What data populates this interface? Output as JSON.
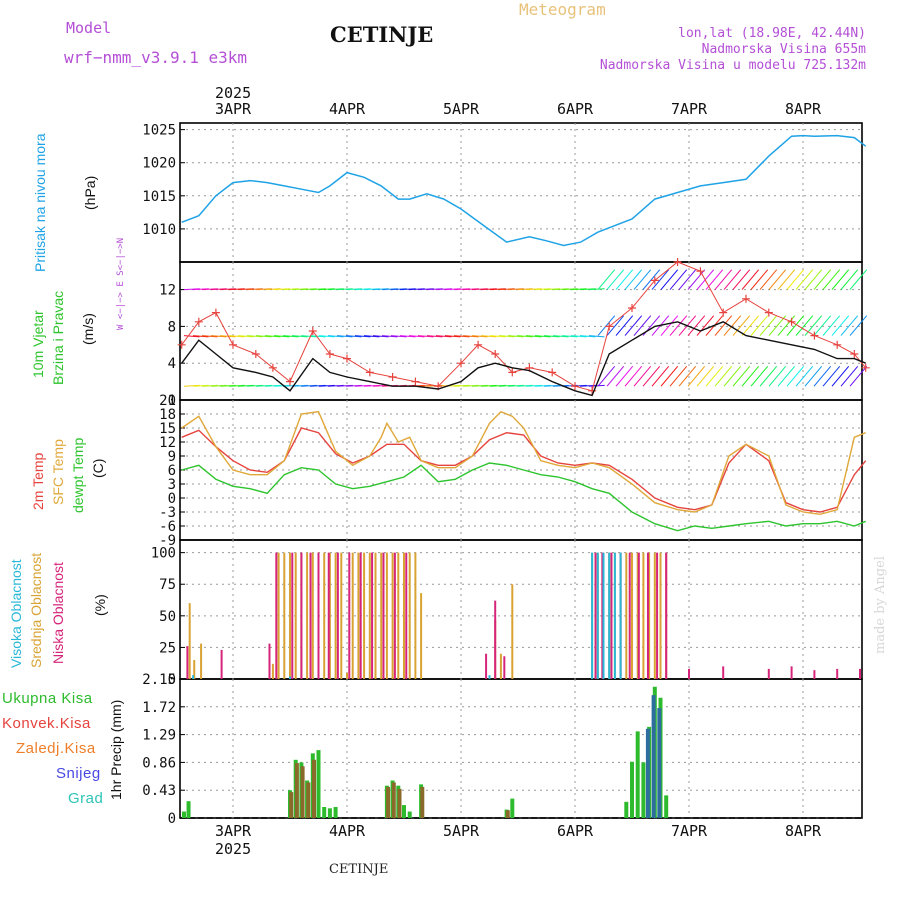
{
  "header": {
    "model_label": "Model",
    "model_name": "wrf−nmm_v3.9.1  e3km",
    "station": "CETINJE",
    "title": "Meteogram",
    "coords": "lon,lat (18.98E, 42.44N)",
    "elevation": "Nadmorska Visina 655m",
    "model_elevation": "Nadmorska Visina u modelu 725.132m",
    "year": "2025"
  },
  "footer": {
    "station": "CETINJE",
    "year": "2025",
    "credit": "made by Angel"
  },
  "days": [
    "3APR",
    "4APR",
    "5APR",
    "6APR",
    "7APR",
    "8APR"
  ],
  "legend": {
    "pressure": "Pritisak na nivou mora",
    "pressure_unit": "(hPa)",
    "wind_a": "10m Vjetar",
    "wind_b": "Brzina i Pravac",
    "wind_unit": "(m/s)",
    "wind_rose": "W <−|−> E  S<−|−>N",
    "temp_2m": "2m Temp",
    "temp_sfc": "SFC Temp",
    "temp_dew": "dewpt Temp",
    "temp_unit": "(C)",
    "cloud_high": "Visoka Oblacnost",
    "cloud_mid": "Srednja Oblacnost",
    "cloud_low": "Niska Oblacnost",
    "cloud_unit": "(%)",
    "precip_unit": "1hr Precip (mm)",
    "precip_items": [
      "Ukupna Kisa",
      "Konvek.Kisa",
      "Zaledj.Kisa",
      "Snijeg",
      "Grad"
    ]
  },
  "colors": {
    "pressure": "#1fa3e6",
    "temp2m": "#e6433e",
    "sfc": "#e0a83a",
    "dew": "#2ec42e",
    "high": "#2ab8d8",
    "mid": "#d9a334",
    "low": "#d6247a",
    "total": "#2dbb2d",
    "conv": "#e6433e",
    "frozen": "#ee7f2a",
    "snow": "#4848e6",
    "hail": "#2ec4b6"
  },
  "chart_data": [
    {
      "type": "line",
      "name": "pressure",
      "title": "Pritisak na nivou mora",
      "ylabel": "(hPa)",
      "x_unit": "days since 3APR 00UTC",
      "xlim": [
        -0.45,
        5.55
      ],
      "ylim": [
        1005,
        1026
      ],
      "yticks": [
        1010,
        1015,
        1020,
        1025
      ],
      "x": [
        -0.45,
        -0.3,
        -0.15,
        0,
        0.15,
        0.3,
        0.45,
        0.6,
        0.75,
        0.85,
        1.0,
        1.15,
        1.3,
        1.45,
        1.55,
        1.7,
        1.85,
        2.0,
        2.2,
        2.4,
        2.6,
        2.75,
        2.9,
        3.05,
        3.2,
        3.35,
        3.5,
        3.7,
        3.9,
        4.1,
        4.3,
        4.5,
        4.7,
        4.9,
        5.0,
        5.1,
        5.3,
        5.45,
        5.55
      ],
      "values": [
        1011,
        1012,
        1015,
        1017,
        1017.3,
        1017,
        1016.5,
        1016,
        1015.5,
        1016.5,
        1018.5,
        1017.8,
        1016.5,
        1014.5,
        1014.5,
        1015.3,
        1014.5,
        1013,
        1010.5,
        1008,
        1008.8,
        1008.2,
        1007.5,
        1008,
        1009.5,
        1010.5,
        1011.5,
        1014.5,
        1015.5,
        1016.5,
        1017,
        1017.5,
        1021,
        1024,
        1024.1,
        1024,
        1024.1,
        1023.8,
        1022.5
      ]
    },
    {
      "type": "line",
      "name": "wind speed",
      "ylabel": "(m/s)",
      "xlim": [
        -0.45,
        5.55
      ],
      "ylim": [
        0,
        15
      ],
      "yticks": [
        0,
        4,
        8,
        12
      ],
      "x": [
        -0.45,
        -0.3,
        -0.15,
        0,
        0.2,
        0.35,
        0.5,
        0.7,
        0.85,
        1.0,
        1.2,
        1.4,
        1.6,
        1.8,
        2.0,
        2.15,
        2.3,
        2.45,
        2.6,
        2.8,
        3.0,
        3.15,
        3.3,
        3.5,
        3.7,
        3.9,
        4.1,
        4.3,
        4.5,
        4.7,
        4.9,
        5.1,
        5.3,
        5.45,
        5.55
      ],
      "values": [
        4,
        6.5,
        5,
        3.5,
        3,
        2.5,
        1,
        4.5,
        3,
        2.5,
        2,
        1.5,
        1.5,
        1.2,
        2,
        3.5,
        4,
        3.5,
        3.2,
        2,
        1,
        0.5,
        5,
        6.5,
        8,
        8.5,
        7.5,
        8.5,
        7,
        6.5,
        6,
        5.5,
        4.5,
        4.5,
        4
      ],
      "gust_x": [
        -0.45,
        -0.3,
        -0.15,
        0,
        0.2,
        0.35,
        0.5,
        0.7,
        0.85,
        1.0,
        1.2,
        1.4,
        1.6,
        1.8,
        2.0,
        2.15,
        2.3,
        2.45,
        2.6,
        2.8,
        3.0,
        3.15,
        3.3,
        3.5,
        3.7,
        3.9,
        4.1,
        4.3,
        4.5,
        4.7,
        4.9,
        5.1,
        5.3,
        5.45,
        5.55
      ],
      "gust_values": [
        6,
        8.5,
        9.5,
        6,
        5,
        3.5,
        2,
        7.5,
        5,
        4.5,
        3,
        2.5,
        2,
        1.5,
        4,
        6,
        5,
        3,
        3.5,
        3,
        1.5,
        1,
        8,
        10,
        13,
        15,
        14,
        9.5,
        11,
        9.5,
        8.5,
        7,
        6,
        5,
        3.5
      ]
    },
    {
      "type": "line",
      "name": "temperature",
      "ylabel": "(C)",
      "xlim": [
        -0.45,
        5.55
      ],
      "ylim": [
        -9,
        21
      ],
      "yticks": [
        -9,
        -6,
        -3,
        0,
        3,
        6,
        9,
        12,
        15,
        18,
        21
      ],
      "series": [
        {
          "name": "2m Temp",
          "x": [
            -0.45,
            -0.3,
            -0.15,
            0,
            0.15,
            0.3,
            0.45,
            0.6,
            0.75,
            0.9,
            1.05,
            1.2,
            1.35,
            1.5,
            1.65,
            1.8,
            1.95,
            2.1,
            2.25,
            2.4,
            2.55,
            2.7,
            2.85,
            3.0,
            3.15,
            3.3,
            3.5,
            3.7,
            3.9,
            4.05,
            4.2,
            4.35,
            4.5,
            4.7,
            4.85,
            5.0,
            5.15,
            5.3,
            5.45,
            5.55
          ],
          "values": [
            13,
            14.5,
            11,
            8,
            6,
            5.5,
            8,
            15,
            14,
            9.5,
            7.5,
            9,
            11.5,
            11.5,
            8,
            7,
            7,
            9,
            12.5,
            14,
            13.5,
            9,
            7.5,
            7,
            7.5,
            7,
            4,
            0,
            -2,
            -2.5,
            -1.5,
            7.5,
            11.5,
            8,
            -1,
            -2.5,
            -3,
            -2,
            5,
            8
          ]
        },
        {
          "name": "SFC Temp",
          "x": [
            -0.45,
            -0.3,
            -0.15,
            0,
            0.15,
            0.3,
            0.45,
            0.6,
            0.75,
            0.9,
            1.05,
            1.2,
            1.3,
            1.35,
            1.45,
            1.55,
            1.65,
            1.8,
            1.95,
            2.1,
            2.25,
            2.35,
            2.45,
            2.55,
            2.7,
            2.85,
            3.0,
            3.15,
            3.3,
            3.5,
            3.7,
            3.9,
            4.05,
            4.2,
            4.35,
            4.5,
            4.7,
            4.85,
            5.0,
            5.15,
            5.3,
            5.45,
            5.55
          ],
          "values": [
            15,
            17.5,
            11,
            6,
            5,
            5,
            8,
            18,
            18.5,
            10,
            7,
            9,
            13,
            16,
            12,
            13,
            8,
            6.5,
            6.5,
            9,
            16,
            18.5,
            17.5,
            15,
            8,
            7,
            6.5,
            7.5,
            6.5,
            3,
            -1,
            -2.5,
            -3,
            -1.5,
            9,
            11.5,
            9,
            -1.5,
            -3,
            -3.5,
            -2.5,
            13,
            14
          ]
        },
        {
          "name": "dewpt Temp",
          "x": [
            -0.45,
            -0.3,
            -0.15,
            0,
            0.15,
            0.3,
            0.45,
            0.6,
            0.75,
            0.9,
            1.05,
            1.2,
            1.35,
            1.5,
            1.65,
            1.8,
            1.95,
            2.1,
            2.25,
            2.4,
            2.55,
            2.7,
            2.85,
            3.0,
            3.15,
            3.3,
            3.5,
            3.7,
            3.9,
            4.05,
            4.2,
            4.35,
            4.5,
            4.7,
            4.85,
            5.0,
            5.15,
            5.3,
            5.45,
            5.55
          ],
          "values": [
            6,
            7,
            4,
            2.5,
            2,
            1,
            5,
            6.5,
            6,
            3,
            2,
            2.5,
            3.5,
            4.5,
            7,
            3.5,
            4,
            6,
            7.5,
            7,
            6,
            5,
            4.5,
            3.5,
            2,
            1,
            -3,
            -5.5,
            -7,
            -6,
            -6.5,
            -6,
            -5.5,
            -5,
            -6,
            -5.5,
            -5.5,
            -5,
            -6,
            -5
          ]
        }
      ]
    },
    {
      "type": "bar",
      "name": "cloud cover",
      "ylabel": "(%)",
      "xlim": [
        -0.45,
        5.55
      ],
      "ylim": [
        0,
        110
      ],
      "yticks": [
        0,
        25,
        50,
        75,
        100
      ],
      "high": {
        "x": [
          -0.35,
          0.5,
          2.25,
          3.15,
          3.2,
          3.25,
          3.3,
          3.35,
          3.4
        ],
        "values": [
          3,
          2,
          3,
          100,
          100,
          100,
          100,
          100,
          100
        ]
      },
      "mid": {
        "x": [
          -0.38,
          -0.34,
          -0.28,
          0.35,
          0.4,
          0.45,
          0.5,
          0.55,
          0.6,
          0.65,
          0.7,
          0.75,
          0.8,
          0.85,
          0.9,
          0.95,
          1.0,
          1.05,
          1.1,
          1.15,
          1.2,
          1.25,
          1.3,
          1.35,
          1.4,
          1.45,
          1.5,
          1.55,
          1.6,
          1.65,
          2.3,
          2.35,
          2.45,
          3.15,
          3.2,
          3.25,
          3.3,
          3.35,
          3.4,
          3.45,
          3.5,
          3.55,
          3.6,
          3.65,
          3.7,
          3.75,
          3.8
        ],
        "values": [
          60,
          15,
          28,
          12,
          100,
          100,
          100,
          100,
          100,
          100,
          100,
          100,
          100,
          100,
          100,
          100,
          5,
          100,
          100,
          100,
          100,
          100,
          100,
          100,
          100,
          100,
          100,
          100,
          100,
          68,
          47,
          20,
          75,
          100,
          100,
          100,
          100,
          100,
          100,
          100,
          100,
          100,
          100,
          100,
          100,
          100,
          100
        ]
      },
      "low": {
        "x": [
          -0.4,
          -0.1,
          0.32,
          0.38,
          0.52,
          0.6,
          0.68,
          0.75,
          0.84,
          0.92,
          1.02,
          1.12,
          1.22,
          1.32,
          1.42,
          1.52,
          2.22,
          2.3,
          2.38,
          3.18,
          3.24,
          3.32,
          3.4,
          3.48,
          3.56,
          3.64,
          3.72,
          3.8,
          4.0,
          4.3,
          4.7,
          4.9,
          5.1,
          5.3,
          5.5
        ],
        "values": [
          26,
          23,
          28,
          100,
          100,
          100,
          100,
          100,
          100,
          100,
          100,
          100,
          100,
          100,
          100,
          100,
          20,
          62,
          18,
          100,
          100,
          100,
          100,
          100,
          100,
          100,
          100,
          100,
          8,
          10,
          8,
          10,
          7,
          8,
          8
        ]
      }
    },
    {
      "type": "bar",
      "name": "1hr precipitation",
      "ylabel": "1hr Precip (mm)",
      "xlim": [
        -0.45,
        5.55
      ],
      "ylim": [
        0,
        2.15
      ],
      "yticks": [
        0,
        0.43,
        0.86,
        1.29,
        1.72,
        2.15
      ],
      "total": {
        "x": [
          -0.43,
          -0.39,
          0.5,
          0.55,
          0.6,
          0.65,
          0.7,
          0.75,
          0.8,
          0.85,
          0.9,
          1.35,
          1.4,
          1.45,
          1.5,
          1.55,
          1.65,
          2.4,
          2.45,
          3.45,
          3.5,
          3.55,
          3.6,
          3.65,
          3.7,
          3.75,
          3.8
        ],
        "values": [
          0.1,
          0.26,
          0.43,
          0.9,
          0.86,
          0.58,
          1.0,
          1.05,
          0.17,
          0.15,
          0.17,
          0.5,
          0.58,
          0.5,
          0.2,
          0.1,
          0.52,
          0.13,
          0.3,
          0.25,
          0.87,
          1.34,
          0.86,
          1.41,
          2.03,
          1.86,
          0.35
        ]
      },
      "convective": {
        "x": [
          0.5,
          0.55,
          0.6,
          0.65,
          0.7,
          1.35,
          1.4,
          1.45,
          1.65,
          2.4
        ],
        "values": [
          0.4,
          0.85,
          0.8,
          0.55,
          0.9,
          0.48,
          0.55,
          0.45,
          0.48,
          0.12
        ]
      },
      "snow": {
        "x": [
          3.45,
          3.5,
          3.55,
          3.6,
          3.65,
          3.7,
          3.75
        ],
        "values": [
          0.0,
          0.0,
          0.0,
          0.0,
          1.38,
          1.9,
          1.7
        ]
      }
    }
  ]
}
